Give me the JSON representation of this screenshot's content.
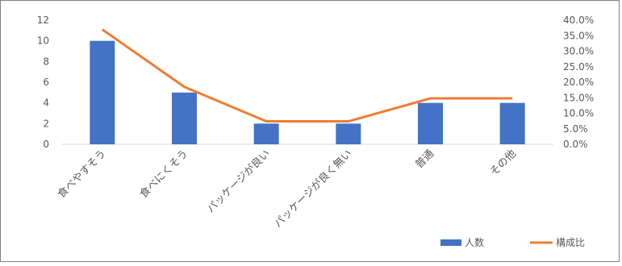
{
  "chart_data": {
    "type": "bar",
    "categories": [
      "食べやすそう",
      "食べにくそう",
      "パッケージが良い",
      "パッケージが良く無い",
      "普通",
      "その他"
    ],
    "series": [
      {
        "name": "人数",
        "type": "bar",
        "axis": "left",
        "values": [
          10,
          5,
          2,
          2,
          4,
          4
        ]
      },
      {
        "name": "構成比",
        "type": "line",
        "axis": "right",
        "values": [
          0.37,
          0.185,
          0.074,
          0.074,
          0.148,
          0.148
        ]
      }
    ],
    "y_left": {
      "min": 0,
      "max": 12,
      "ticks": [
        "0",
        "2",
        "4",
        "6",
        "8",
        "10",
        "12"
      ]
    },
    "y_right": {
      "min": 0,
      "max": 0.4,
      "ticks": [
        "0.0%",
        "5.0%",
        "10.0%",
        "15.0%",
        "20.0%",
        "25.0%",
        "30.0%",
        "35.0%",
        "40.0%"
      ]
    },
    "grid": false,
    "legend_position": "bottom-right",
    "colors": {
      "bar": "#4472C4",
      "line": "#ED7D31"
    }
  }
}
